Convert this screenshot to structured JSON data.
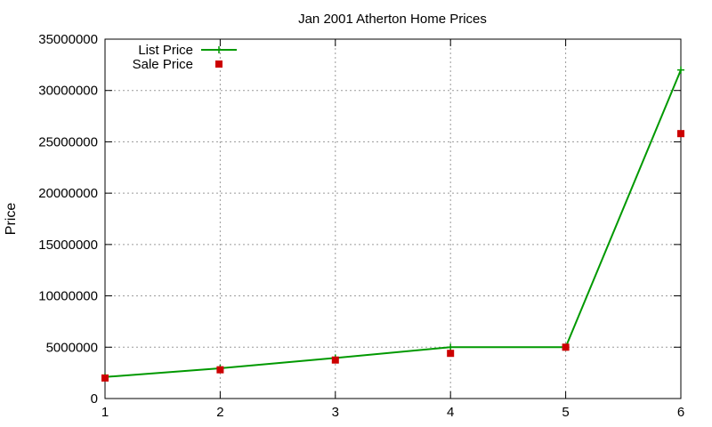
{
  "chart_data": {
    "type": "line",
    "title": "Jan 2001 Atherton Home Prices",
    "xlabel": "",
    "ylabel": "Price",
    "x": [
      1,
      2,
      3,
      4,
      5,
      6
    ],
    "xlim": [
      1,
      6
    ],
    "ylim": [
      0,
      35000000
    ],
    "x_ticks": [
      "1",
      "2",
      "3",
      "4",
      "5",
      "6"
    ],
    "y_ticks": [
      "0",
      "5000000",
      "10000000",
      "15000000",
      "20000000",
      "25000000",
      "30000000",
      "35000000"
    ],
    "grid": true,
    "legend_position": "top-left",
    "series": [
      {
        "name": "List Price",
        "style": "lines+crosses",
        "color": "#009900",
        "values": [
          2100000,
          2950000,
          3950000,
          5000000,
          5000000,
          32000000
        ]
      },
      {
        "name": "Sale Price",
        "style": "square-points",
        "color": "#cc0000",
        "values": [
          2000000,
          2800000,
          3750000,
          4400000,
          5000000,
          25800000
        ]
      }
    ]
  }
}
